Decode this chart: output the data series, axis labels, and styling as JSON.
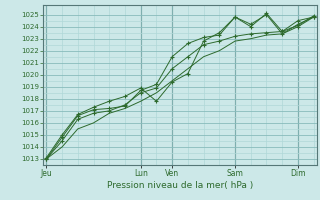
{
  "bg_color": "#cce8e8",
  "grid_minor_color": "#b0d8d8",
  "grid_major_color": "#88bbbb",
  "line_color": "#2d6a2d",
  "ylabel_values": [
    1013,
    1014,
    1015,
    1016,
    1017,
    1018,
    1019,
    1020,
    1021,
    1022,
    1023,
    1024,
    1025
  ],
  "ylim": [
    1012.5,
    1025.8
  ],
  "xlabel": "Pression niveau de la mer( hPa )",
  "day_labels": [
    "Jeu",
    "Lun",
    "Ven",
    "Sam",
    "Dim"
  ],
  "day_x": [
    0.0,
    3.0,
    4.0,
    6.0,
    8.0
  ],
  "xlim": [
    -0.1,
    8.6
  ],
  "series1_x": [
    0,
    0.5,
    1.0,
    1.5,
    2.0,
    2.5,
    3.0,
    3.5,
    4.0,
    4.5,
    5.0,
    5.5,
    6.0,
    6.5,
    7.0,
    7.5,
    8.0,
    8.5
  ],
  "series1_y": [
    1013.0,
    1014.8,
    1016.6,
    1017.1,
    1017.2,
    1017.4,
    1018.7,
    1019.2,
    1021.5,
    1022.6,
    1023.1,
    1023.3,
    1024.8,
    1024.2,
    1025.0,
    1023.4,
    1024.0,
    1024.8
  ],
  "series2_x": [
    0,
    0.5,
    1.0,
    1.5,
    2.0,
    2.5,
    3.0,
    3.5,
    4.0,
    4.5,
    5.0,
    5.5,
    6.0,
    6.5,
    7.0,
    7.5,
    8.0,
    8.5
  ],
  "series2_y": [
    1013.1,
    1015.0,
    1016.7,
    1017.3,
    1017.8,
    1018.2,
    1018.9,
    1017.8,
    1019.4,
    1020.1,
    1022.8,
    1023.5,
    1024.8,
    1024.0,
    1025.1,
    1023.6,
    1024.1,
    1024.9
  ],
  "series3_x": [
    0,
    0.5,
    1.0,
    1.5,
    2.0,
    2.5,
    3.0,
    3.5,
    4.0,
    4.5,
    5.0,
    5.5,
    6.0,
    6.5,
    7.0,
    7.5,
    8.0,
    8.5
  ],
  "series3_y": [
    1013.0,
    1014.5,
    1016.3,
    1016.8,
    1017.0,
    1017.5,
    1018.5,
    1018.9,
    1020.5,
    1021.5,
    1022.5,
    1022.8,
    1023.2,
    1023.4,
    1023.5,
    1023.6,
    1024.5,
    1024.8
  ],
  "series4_x": [
    0,
    0.5,
    1.0,
    1.5,
    2.0,
    2.5,
    3.0,
    3.5,
    4.0,
    4.5,
    5.0,
    5.5,
    6.0,
    6.5,
    7.0,
    7.5,
    8.0,
    8.5
  ],
  "series4_y": [
    1013.0,
    1014.0,
    1015.5,
    1016.0,
    1016.8,
    1017.2,
    1017.8,
    1018.5,
    1019.5,
    1020.5,
    1021.5,
    1022.0,
    1022.8,
    1023.0,
    1023.3,
    1023.4,
    1024.2,
    1024.8
  ]
}
